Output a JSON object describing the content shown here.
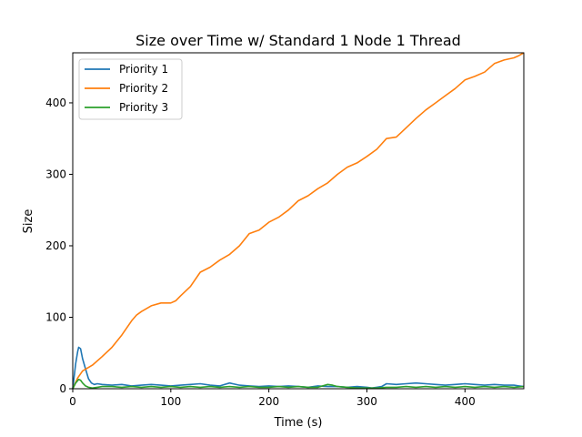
{
  "chart_data": {
    "type": "line",
    "title": "Size over Time w/ Standard 1 Node 1 Thread",
    "xlabel": "Time (s)",
    "ylabel": "Size",
    "xlim": [
      0,
      460
    ],
    "ylim": [
      0,
      470
    ],
    "xticks": [
      0,
      100,
      200,
      300,
      400
    ],
    "yticks": [
      0,
      100,
      200,
      300,
      400
    ],
    "grid": false,
    "legend_position": "upper-left",
    "series": [
      {
        "name": "Priority 1",
        "color": "#1f77b4",
        "x": [
          0,
          3,
          5,
          6,
          8,
          10,
          13,
          16,
          19,
          22,
          25,
          30,
          40,
          50,
          60,
          70,
          80,
          90,
          100,
          110,
          120,
          130,
          140,
          150,
          160,
          170,
          180,
          190,
          200,
          210,
          220,
          230,
          240,
          250,
          260,
          270,
          280,
          290,
          300,
          305,
          310,
          315,
          320,
          330,
          340,
          350,
          360,
          370,
          380,
          390,
          400,
          410,
          420,
          430,
          440,
          450,
          455,
          460
        ],
        "y": [
          0,
          35,
          52,
          58,
          56,
          42,
          28,
          14,
          8,
          6,
          7,
          6,
          5,
          6,
          4,
          5,
          6,
          5,
          4,
          5,
          6,
          7,
          5,
          4,
          8,
          5,
          4,
          3,
          4,
          3,
          4,
          3,
          2,
          4,
          3,
          3,
          2,
          3,
          2,
          1,
          2,
          3,
          7,
          6,
          7,
          8,
          7,
          6,
          5,
          6,
          7,
          6,
          5,
          6,
          5,
          5,
          4,
          3
        ]
      },
      {
        "name": "Priority 2",
        "color": "#ff7f0e",
        "x": [
          0,
          5,
          10,
          20,
          30,
          40,
          50,
          60,
          65,
          70,
          80,
          90,
          100,
          105,
          110,
          120,
          130,
          140,
          150,
          160,
          170,
          180,
          190,
          200,
          210,
          220,
          230,
          240,
          250,
          260,
          270,
          280,
          290,
          300,
          310,
          320,
          330,
          340,
          350,
          360,
          370,
          380,
          390,
          400,
          410,
          420,
          430,
          440,
          450,
          455,
          460
        ],
        "y": [
          0,
          15,
          25,
          33,
          45,
          58,
          75,
          95,
          103,
          108,
          116,
          120,
          120,
          123,
          130,
          143,
          163,
          170,
          180,
          188,
          200,
          217,
          222,
          233,
          240,
          250,
          263,
          270,
          280,
          288,
          300,
          310,
          316,
          325,
          335,
          350,
          352,
          365,
          378,
          390,
          400,
          410,
          420,
          432,
          437,
          443,
          455,
          460,
          463,
          466,
          470
        ]
      },
      {
        "name": "Priority 3",
        "color": "#2ca02c",
        "x": [
          0,
          3,
          6,
          8,
          10,
          13,
          16,
          20,
          25,
          30,
          40,
          50,
          60,
          70,
          80,
          90,
          100,
          110,
          120,
          130,
          140,
          150,
          160,
          170,
          180,
          190,
          200,
          210,
          220,
          230,
          240,
          250,
          260,
          265,
          270,
          280,
          290,
          300,
          310,
          320,
          330,
          340,
          350,
          360,
          370,
          380,
          390,
          400,
          410,
          420,
          430,
          440,
          450,
          460
        ],
        "y": [
          0,
          8,
          13,
          12,
          8,
          4,
          2,
          1,
          2,
          3,
          3,
          2,
          3,
          2,
          3,
          2,
          3,
          2,
          3,
          2,
          3,
          2,
          3,
          2,
          3,
          2,
          2,
          3,
          2,
          3,
          2,
          2,
          6,
          5,
          3,
          2,
          1,
          1,
          1,
          2,
          2,
          3,
          2,
          3,
          2,
          3,
          2,
          3,
          2,
          3,
          2,
          3,
          2,
          3
        ]
      }
    ]
  }
}
